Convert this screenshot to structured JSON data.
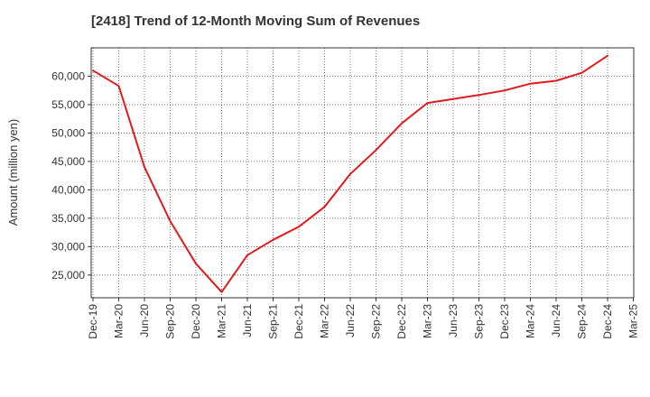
{
  "chart_data": {
    "type": "line",
    "title": "[2418]  Trend of 12-Month Moving Sum of Revenues",
    "xlabel": "",
    "ylabel": "Amount (million yen)",
    "x_ticks": [
      "Dec-19",
      "Mar-20",
      "Jun-20",
      "Sep-20",
      "Dec-20",
      "Mar-21",
      "Jun-21",
      "Sep-21",
      "Dec-21",
      "Mar-22",
      "Jun-22",
      "Sep-22",
      "Dec-22",
      "Mar-23",
      "Jun-23",
      "Sep-23",
      "Dec-23",
      "Mar-24",
      "Jun-24",
      "Sep-24",
      "Dec-24",
      "Mar-25"
    ],
    "y_ticks": [
      25000,
      30000,
      35000,
      40000,
      45000,
      50000,
      55000,
      60000
    ],
    "y_tick_labels": [
      "25,000",
      "30,000",
      "35,000",
      "40,000",
      "45,000",
      "50,000",
      "55,000",
      "60,000"
    ],
    "ylim": [
      21000,
      65000
    ],
    "grid": true,
    "series": [
      {
        "color": "#e31a1c",
        "x": [
          "Dec-19",
          "Mar-20",
          "Jun-20",
          "Sep-20",
          "Dec-20",
          "Mar-21",
          "Jun-21",
          "Sep-21",
          "Dec-21",
          "Mar-22",
          "Jun-22",
          "Sep-22",
          "Dec-22",
          "Mar-23",
          "Jun-23",
          "Sep-23",
          "Dec-23",
          "Mar-24",
          "Jun-24",
          "Sep-24",
          "Dec-24"
        ],
        "values": [
          61000,
          58300,
          44000,
          34500,
          27000,
          22000,
          28500,
          31200,
          33500,
          37000,
          42800,
          47000,
          51700,
          55300,
          56000,
          56700,
          57500,
          58700,
          59200,
          60600,
          63600
        ]
      }
    ]
  }
}
